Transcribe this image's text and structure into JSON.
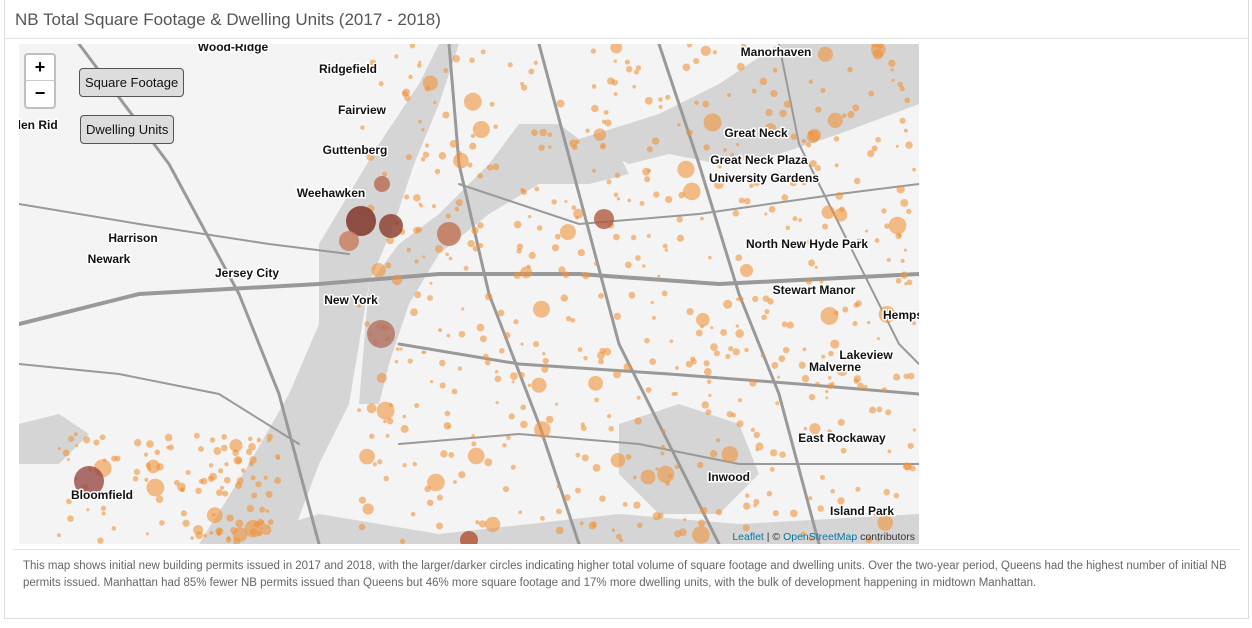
{
  "header": {
    "title": "NB Total Square Footage & Dwelling Units (2017 - 2018)"
  },
  "map": {
    "zoom_in": "+",
    "zoom_out": "−",
    "layers": [
      "Square Footage",
      "Dwelling Units"
    ],
    "places": [
      "Wood-Ridge",
      "Manorhaven",
      "Ridgefield",
      "Fairview",
      "Glen Rid",
      "Guttenberg",
      "Great Neck",
      "Great Neck Plaza",
      "University Gardens",
      "Weehawken",
      "Harrison",
      "Newark",
      "Jersey City",
      "New York",
      "North New Hyde Park",
      "Stewart Manor",
      "Hemps",
      "Lakeview",
      "Malverne",
      "East Rockaway",
      "Inwood",
      "Island Park",
      "Bloomfield"
    ],
    "attribution": {
      "leaflet": "Leaflet",
      "separator": "| ©",
      "osm": "OpenStreetMap",
      "suffix": "contributors"
    }
  },
  "description": "This map shows initial new building permits issued in 2017 and 2018, with the larger/darker circles indicating higher total volume of square footage and dwelling units. Over the two-year period, Queens had the highest number of initial NB permits issued. Manhattan had 85% fewer NB permits issued than Queens but 46% more square footage and 17% more dwelling units, with the bulk of development happening in midtown Manhattan."
}
